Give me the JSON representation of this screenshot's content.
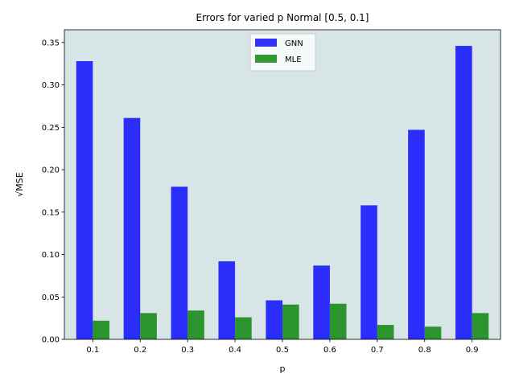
{
  "chart_data": {
    "type": "bar",
    "title": "Errors for varied p Normal [0.5, 0.1]",
    "xlabel": "p",
    "ylabel": "√MSE",
    "categories": [
      "0.1",
      "0.2",
      "0.3",
      "0.4",
      "0.5",
      "0.6",
      "0.7",
      "0.8",
      "0.9"
    ],
    "series": [
      {
        "name": "GNN",
        "color": "#0000ff",
        "values": [
          0.328,
          0.261,
          0.18,
          0.092,
          0.046,
          0.087,
          0.158,
          0.247,
          0.346
        ]
      },
      {
        "name": "MLE",
        "color": "#008000",
        "values": [
          0.022,
          0.031,
          0.034,
          0.026,
          0.041,
          0.042,
          0.017,
          0.015,
          0.031
        ]
      }
    ],
    "ylim": [
      0,
      0.365
    ],
    "yticks": [
      "0.00",
      "0.05",
      "0.10",
      "0.15",
      "0.20",
      "0.25",
      "0.30",
      "0.35"
    ],
    "plot_background": "#d8e5e7",
    "legend_position": "upper center",
    "grid": false
  }
}
